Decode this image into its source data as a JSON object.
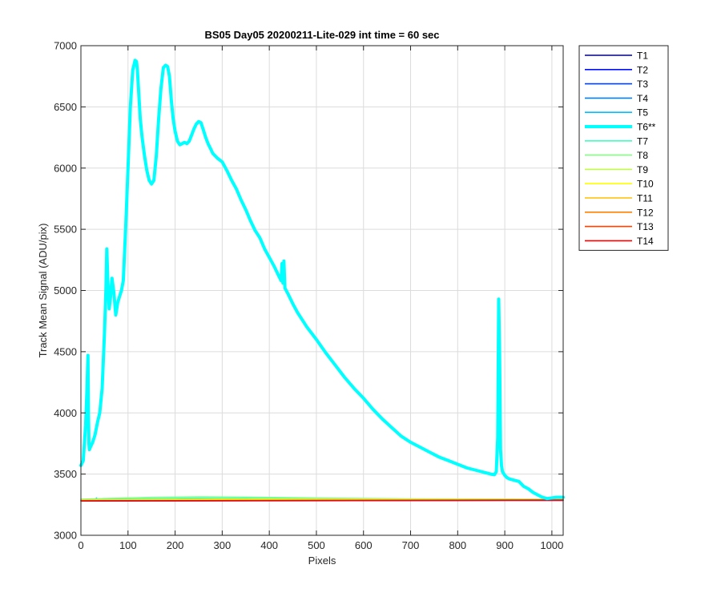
{
  "chart_data": {
    "type": "line",
    "title": "BS05 Day05 20200211-Lite-029 int time = 60 sec",
    "xlabel": "Pixels",
    "ylabel": "Track Mean Signal (ADU/pix)",
    "xlim": [
      0,
      1024
    ],
    "ylim": [
      3000,
      7000
    ],
    "xticks": [
      0,
      100,
      200,
      300,
      400,
      500,
      600,
      700,
      800,
      900,
      1000
    ],
    "yticks": [
      3000,
      3500,
      4000,
      4500,
      5000,
      5500,
      6000,
      6500,
      7000
    ],
    "grid": true,
    "legend_position": "outside-top-right",
    "series": [
      {
        "name": "T1",
        "color": "#00008f",
        "highlight": false,
        "x": [
          0,
          1024
        ],
        "y": [
          3280,
          3285
        ]
      },
      {
        "name": "T2",
        "color": "#0010ff",
        "highlight": false,
        "x": [
          0,
          1024
        ],
        "y": [
          3282,
          3287
        ]
      },
      {
        "name": "T3",
        "color": "#0040ff",
        "highlight": false,
        "x": [
          0,
          1024
        ],
        "y": [
          3284,
          3289
        ]
      },
      {
        "name": "T4",
        "color": "#0080ff",
        "highlight": false,
        "x": [
          0,
          1024
        ],
        "y": [
          3286,
          3290
        ]
      },
      {
        "name": "T5",
        "color": "#00bfff",
        "highlight": false,
        "x": [
          0,
          30,
          33,
          36,
          100,
          300,
          600,
          900,
          1024
        ],
        "y": [
          3285,
          3288,
          3305,
          3290,
          3295,
          3300,
          3295,
          3292,
          3292
        ]
      },
      {
        "name": "T6**",
        "color": "#00ffff",
        "highlight": true,
        "x": [
          0,
          5,
          10,
          13,
          15,
          16,
          17,
          18,
          20,
          25,
          30,
          35,
          40,
          45,
          50,
          53,
          55,
          57,
          60,
          63,
          66,
          70,
          74,
          78,
          82,
          86,
          90,
          95,
          100,
          105,
          110,
          115,
          118,
          120,
          123,
          126,
          130,
          135,
          140,
          145,
          150,
          155,
          160,
          165,
          170,
          175,
          180,
          184,
          188,
          192,
          196,
          200,
          205,
          210,
          215,
          220,
          225,
          230,
          235,
          240,
          245,
          250,
          255,
          260,
          265,
          270,
          275,
          280,
          290,
          300,
          310,
          320,
          330,
          340,
          350,
          360,
          370,
          380,
          390,
          400,
          410,
          420,
          425,
          427,
          429,
          431,
          433,
          440,
          450,
          460,
          470,
          480,
          490,
          500,
          520,
          540,
          560,
          580,
          600,
          620,
          640,
          660,
          680,
          700,
          720,
          740,
          760,
          780,
          800,
          820,
          840,
          860,
          870,
          878,
          882,
          885,
          887,
          889,
          891,
          893,
          895,
          900,
          905,
          910,
          920,
          930,
          940,
          950,
          960,
          970,
          980,
          990,
          1000,
          1010,
          1024
        ],
        "y": [
          3570,
          3610,
          3900,
          4200,
          4470,
          4000,
          3750,
          3700,
          3720,
          3760,
          3820,
          3920,
          4000,
          4200,
          4650,
          5000,
          5340,
          5100,
          4850,
          4950,
          5100,
          4980,
          4800,
          4900,
          4950,
          5000,
          5080,
          5500,
          6000,
          6500,
          6800,
          6880,
          6870,
          6800,
          6600,
          6400,
          6250,
          6100,
          5980,
          5900,
          5870,
          5900,
          6100,
          6400,
          6650,
          6820,
          6840,
          6830,
          6750,
          6550,
          6400,
          6300,
          6220,
          6190,
          6200,
          6210,
          6200,
          6220,
          6270,
          6320,
          6360,
          6380,
          6370,
          6310,
          6250,
          6200,
          6160,
          6120,
          6080,
          6050,
          5980,
          5900,
          5830,
          5740,
          5660,
          5570,
          5490,
          5430,
          5340,
          5270,
          5200,
          5120,
          5080,
          5220,
          5060,
          5240,
          5020,
          4970,
          4890,
          4820,
          4760,
          4700,
          4650,
          4600,
          4490,
          4390,
          4290,
          4200,
          4120,
          4030,
          3950,
          3880,
          3810,
          3760,
          3720,
          3680,
          3640,
          3610,
          3580,
          3550,
          3530,
          3510,
          3500,
          3495,
          3520,
          3800,
          4930,
          4500,
          3700,
          3570,
          3520,
          3490,
          3470,
          3460,
          3450,
          3440,
          3400,
          3380,
          3350,
          3330,
          3310,
          3300,
          3305,
          3310,
          3310
        ]
      },
      {
        "name": "T7",
        "color": "#40ffbf",
        "highlight": false,
        "x": [
          0,
          150,
          250,
          350,
          500,
          700,
          1024
        ],
        "y": [
          3292,
          3300,
          3305,
          3303,
          3298,
          3294,
          3292
        ]
      },
      {
        "name": "T8",
        "color": "#80ff80",
        "highlight": false,
        "x": [
          0,
          150,
          250,
          350,
          500,
          700,
          1024
        ],
        "y": [
          3295,
          3310,
          3315,
          3312,
          3305,
          3298,
          3295
        ]
      },
      {
        "name": "T9",
        "color": "#bfff40",
        "highlight": false,
        "x": [
          0,
          300,
          1024
        ],
        "y": [
          3288,
          3296,
          3291
        ]
      },
      {
        "name": "T10",
        "color": "#ffff00",
        "highlight": false,
        "x": [
          0,
          300,
          1024
        ],
        "y": [
          3286,
          3293,
          3290
        ]
      },
      {
        "name": "T11",
        "color": "#ffbf00",
        "highlight": false,
        "x": [
          0,
          1024
        ],
        "y": [
          3285,
          3290
        ]
      },
      {
        "name": "T12",
        "color": "#ff8000",
        "highlight": false,
        "x": [
          0,
          1024
        ],
        "y": [
          3283,
          3289
        ]
      },
      {
        "name": "T13",
        "color": "#ff4000",
        "highlight": false,
        "x": [
          0,
          1024
        ],
        "y": [
          3282,
          3288
        ]
      },
      {
        "name": "T14",
        "color": "#ff0000",
        "highlight": false,
        "x": [
          0,
          1024
        ],
        "y": [
          3281,
          3287
        ]
      }
    ]
  }
}
